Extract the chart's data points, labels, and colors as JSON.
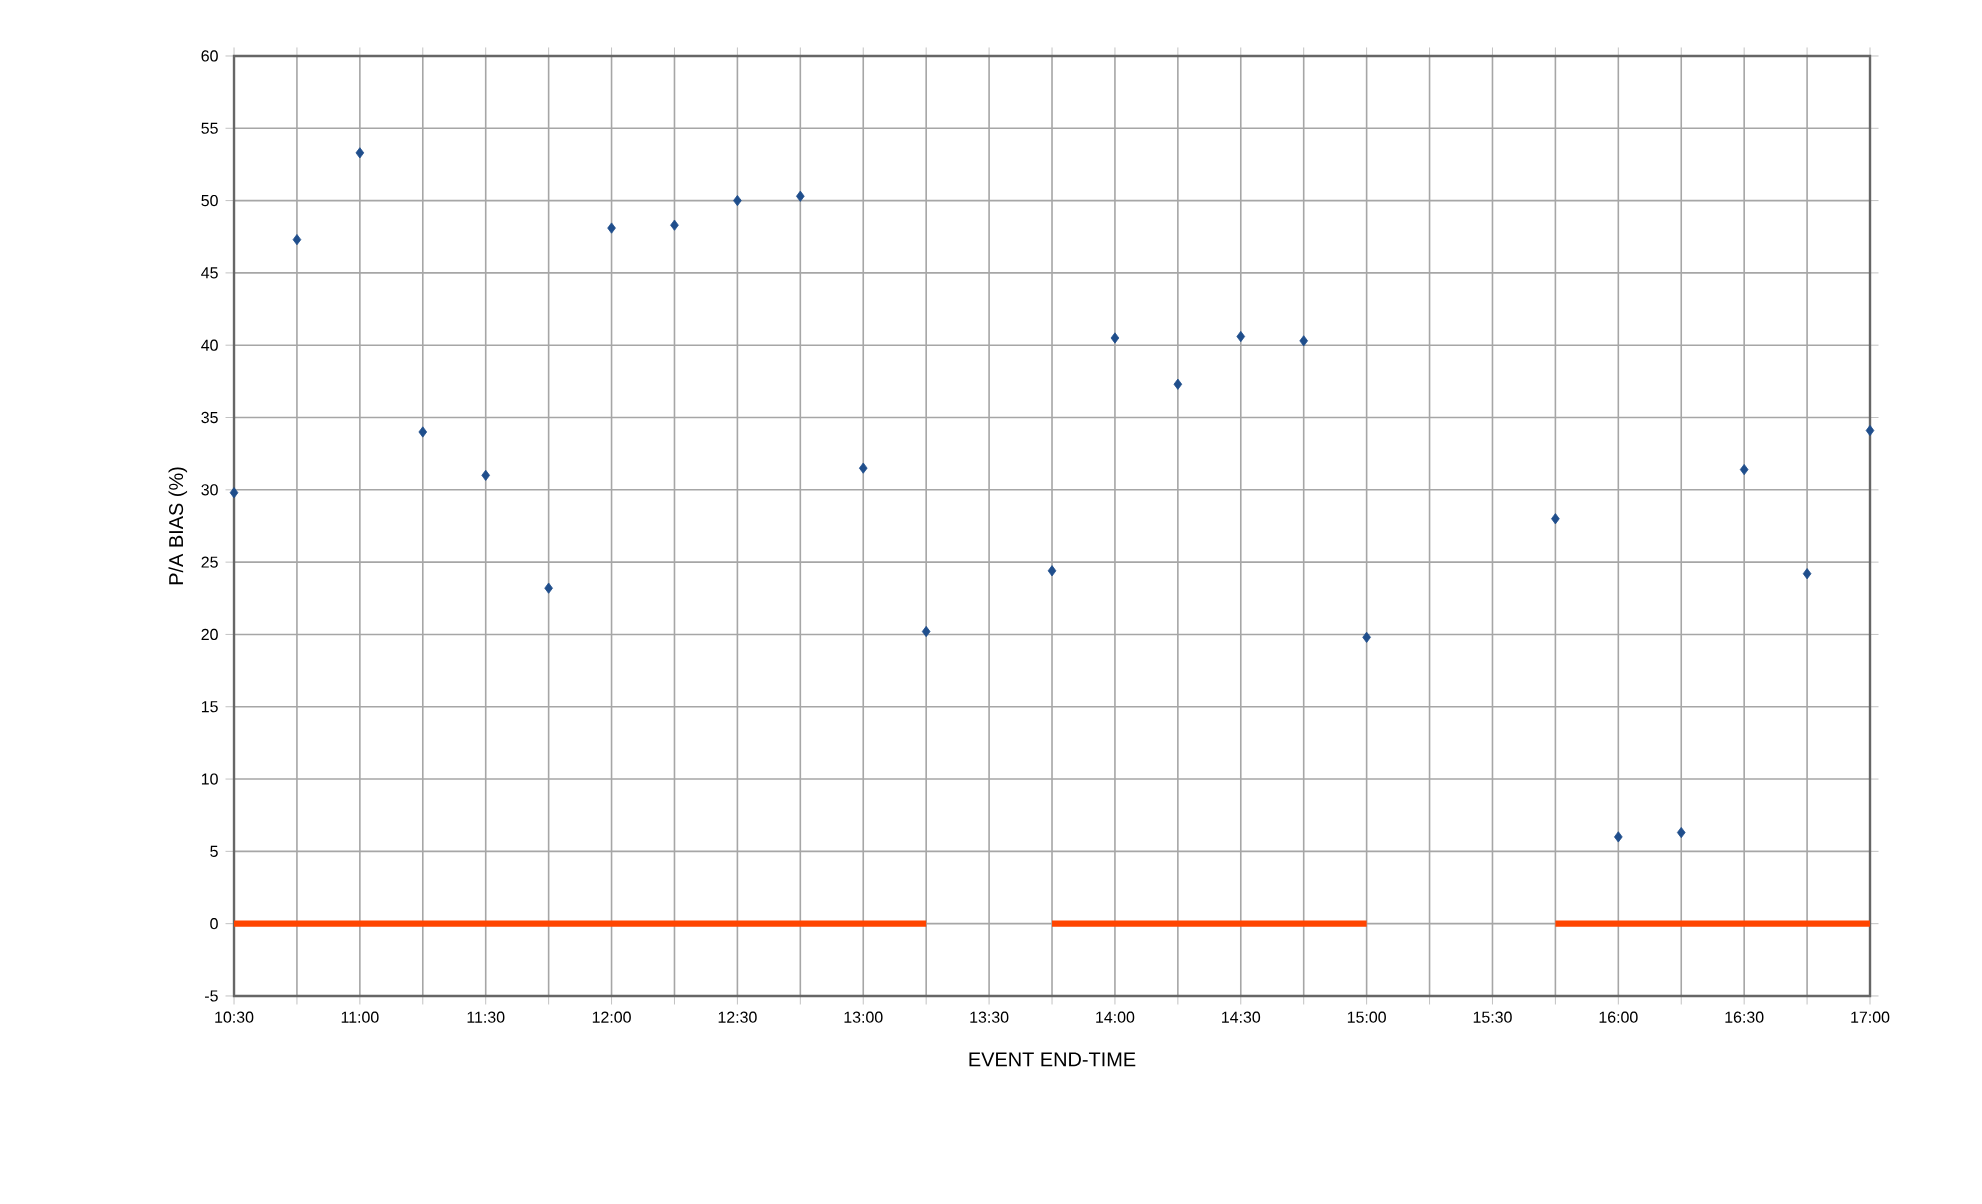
{
  "chart_data": {
    "type": "scatter",
    "xlabel": "EVENT END-TIME",
    "ylabel": "P/A BIAS (%)",
    "x": [
      10.5,
      10.75,
      11,
      11.25,
      11.5,
      11.75,
      12,
      12.25,
      12.5,
      12.75,
      13,
      13.25,
      13.5,
      13.75,
      14,
      14.25,
      14.5,
      14.75,
      15,
      15.25,
      15.5,
      15.75,
      16,
      16.25,
      16.5,
      16.75,
      17
    ],
    "series": [
      {
        "color": "#1f4e8c",
        "marker": "diamond",
        "values": [
          29.8,
          47.3,
          53.3,
          34,
          31,
          23.2,
          48.1,
          48.3,
          50,
          50.3,
          31.5,
          20.2,
          null,
          24.4,
          40.5,
          37.3,
          40.6,
          40.3,
          19.8,
          null,
          null,
          28,
          6,
          6.3,
          31.4,
          24.2,
          34.1
        ]
      },
      {
        "type": "line",
        "color": "#ff4500",
        "values": [
          0,
          0,
          0,
          0,
          0,
          0,
          0,
          0,
          0,
          0,
          0,
          0,
          null,
          0,
          0,
          0,
          0,
          0,
          0,
          null,
          null,
          0,
          0,
          0,
          0,
          0,
          0
        ]
      }
    ],
    "xlim": [
      10.5,
      17
    ],
    "ylim": [
      -5,
      60
    ],
    "xticks": [
      {
        "value": 10.5,
        "label": "10:30"
      },
      {
        "value": 10.75,
        "label": null
      },
      {
        "value": 11,
        "label": "11:00"
      },
      {
        "value": 11.25,
        "label": null
      },
      {
        "value": 11.5,
        "label": "11:30"
      },
      {
        "value": 11.75,
        "label": null
      },
      {
        "value": 12,
        "label": "12:00"
      },
      {
        "value": 12.25,
        "label": null
      },
      {
        "value": 12.5,
        "label": "12:30"
      },
      {
        "value": 12.75,
        "label": null
      },
      {
        "value": 13,
        "label": "13:00"
      },
      {
        "value": 13.25,
        "label": null
      },
      {
        "value": 13.5,
        "label": "13:30"
      },
      {
        "value": 13.75,
        "label": null
      },
      {
        "value": 14,
        "label": "14:00"
      },
      {
        "value": 14.25,
        "label": null
      },
      {
        "value": 14.5,
        "label": "14:30"
      },
      {
        "value": 14.75,
        "label": null
      },
      {
        "value": 15,
        "label": "15:00"
      },
      {
        "value": 15.25,
        "label": null
      },
      {
        "value": 15.5,
        "label": "15:30"
      },
      {
        "value": 15.75,
        "label": null
      },
      {
        "value": 16,
        "label": "16:00"
      },
      {
        "value": 16.25,
        "label": null
      },
      {
        "value": 16.5,
        "label": "16:30"
      },
      {
        "value": 16.75,
        "label": null
      },
      {
        "value": 17,
        "label": "17:00"
      }
    ],
    "yticks": [
      -5,
      0,
      5,
      10,
      15,
      20,
      25,
      30,
      35,
      40,
      45,
      50,
      55,
      60
    ],
    "grid": true
  }
}
